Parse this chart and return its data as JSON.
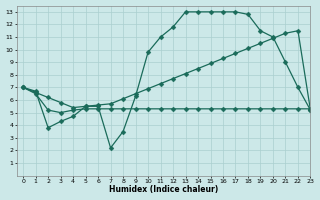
{
  "xlabel": "Humidex (Indice chaleur)",
  "bg_color": "#cce8e8",
  "line_color": "#1a6b5a",
  "grid_color": "#aacfcf",
  "xlim": [
    -0.5,
    23
  ],
  "ylim": [
    0,
    13.5
  ],
  "xtick_labels": [
    "0",
    "1",
    "2",
    "3",
    "4",
    "5",
    "6",
    "7",
    "8",
    "9",
    "10",
    "11",
    "12",
    "13",
    "14",
    "15",
    "16",
    "17",
    "18",
    "19",
    "20",
    "21",
    "22",
    "23"
  ],
  "ytick_vals": [
    1,
    2,
    3,
    4,
    5,
    6,
    7,
    8,
    9,
    10,
    11,
    12,
    13
  ],
  "line1_x": [
    0,
    1,
    2,
    3,
    4,
    5,
    6,
    7,
    8,
    9,
    10,
    11,
    12,
    13,
    14,
    15,
    16,
    17,
    18,
    19,
    20,
    21,
    22,
    23
  ],
  "line1_y": [
    7.0,
    6.6,
    6.2,
    5.8,
    5.4,
    5.5,
    5.6,
    5.7,
    6.1,
    6.5,
    6.9,
    7.3,
    7.7,
    8.1,
    8.5,
    8.9,
    9.3,
    9.7,
    10.1,
    10.5,
    10.9,
    11.3,
    11.5,
    5.2
  ],
  "line2_x": [
    0,
    1,
    2,
    3,
    4,
    5,
    6,
    7,
    8,
    9,
    10,
    11,
    12,
    13,
    14,
    15,
    16,
    17,
    18,
    19,
    20,
    21,
    22,
    23
  ],
  "line2_y": [
    7.0,
    6.7,
    3.8,
    4.3,
    4.7,
    5.5,
    5.5,
    2.2,
    3.5,
    6.3,
    9.8,
    11.0,
    11.8,
    13.0,
    13.0,
    13.0,
    13.0,
    13.0,
    12.8,
    11.5,
    11.0,
    9.0,
    7.0,
    5.2
  ],
  "line3_x": [
    0,
    1,
    2,
    3,
    4,
    5,
    6,
    7,
    8,
    9,
    10,
    11,
    12,
    13,
    14,
    15,
    16,
    17,
    18,
    19,
    20,
    21,
    22,
    23
  ],
  "line3_y": [
    7.0,
    6.5,
    5.2,
    5.0,
    5.2,
    5.3,
    5.3,
    5.3,
    5.3,
    5.3,
    5.3,
    5.3,
    5.3,
    5.3,
    5.3,
    5.3,
    5.3,
    5.3,
    5.3,
    5.3,
    5.3,
    5.3,
    5.3,
    5.3
  ],
  "markersize": 2.5,
  "linewidth": 0.9
}
